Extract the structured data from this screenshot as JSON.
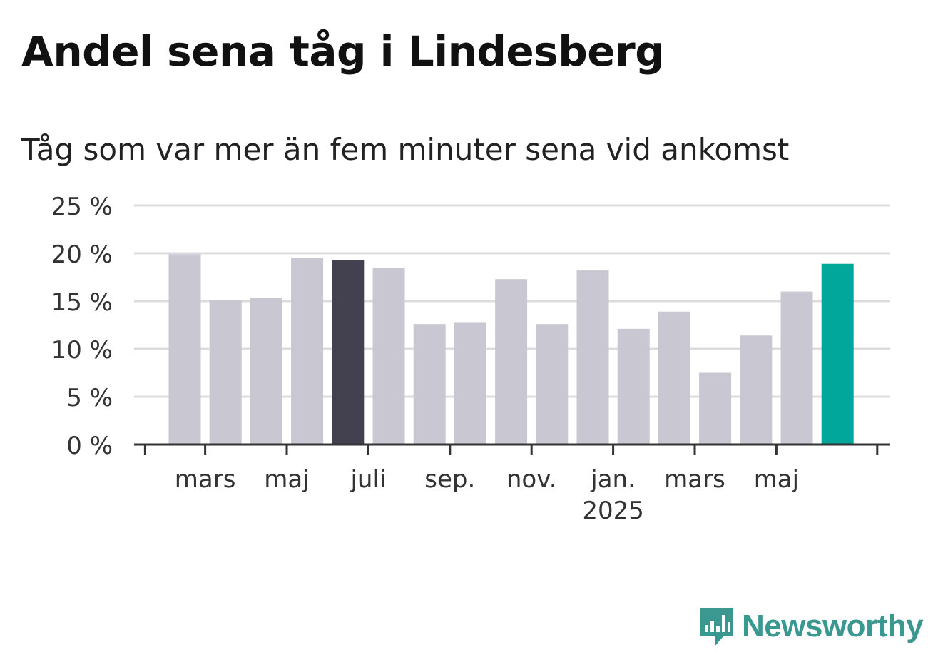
{
  "title": "Andel sena tåg i Lindesberg",
  "subtitle": "Tåg som var mer än fem minuter sena vid ankomst",
  "brand": "Newsworthy",
  "colors": {
    "bar_default": "#c9c8d2",
    "bar_highlight_dark": "#43414f",
    "bar_highlight_accent": "#00a79a",
    "grid": "#dcdcdc",
    "axis": "#333333",
    "text": "#333333",
    "brand": "#3a9891"
  },
  "chart_data": {
    "type": "bar",
    "ylim": [
      0,
      25
    ],
    "yticks": [
      {
        "value": 0,
        "label": "0 %"
      },
      {
        "value": 5,
        "label": "5 %"
      },
      {
        "value": 10,
        "label": "10 %"
      },
      {
        "value": 15,
        "label": "15 %"
      },
      {
        "value": 20,
        "label": "20 %"
      },
      {
        "value": 25,
        "label": "25 %"
      }
    ],
    "grid": true,
    "months": [
      "2024-02",
      "2024-03",
      "2024-04",
      "2024-05",
      "2024-06",
      "2024-07",
      "2024-08",
      "2024-09",
      "2024-10",
      "2024-11",
      "2024-12",
      "2025-01",
      "2025-02",
      "2025-03",
      "2025-04",
      "2025-05",
      "2025-06"
    ],
    "values": [
      19.9,
      15.1,
      15.3,
      19.5,
      19.3,
      18.5,
      12.6,
      12.8,
      17.3,
      12.6,
      18.2,
      12.1,
      13.9,
      7.5,
      11.4,
      16.0,
      18.9
    ],
    "highlight": {
      "2024-06": "dark",
      "2025-06": "accent"
    },
    "xticks": [
      {
        "month": "2024-03",
        "label": "mars"
      },
      {
        "month": "2024-05",
        "label": "maj"
      },
      {
        "month": "2024-07",
        "label": "juli"
      },
      {
        "month": "2024-09",
        "label": "sep."
      },
      {
        "month": "2024-11",
        "label": "nov."
      },
      {
        "month": "2025-01",
        "label": "jan.",
        "sublabel": "2025"
      },
      {
        "month": "2025-03",
        "label": "mars"
      },
      {
        "month": "2025-05",
        "label": "maj"
      }
    ]
  }
}
